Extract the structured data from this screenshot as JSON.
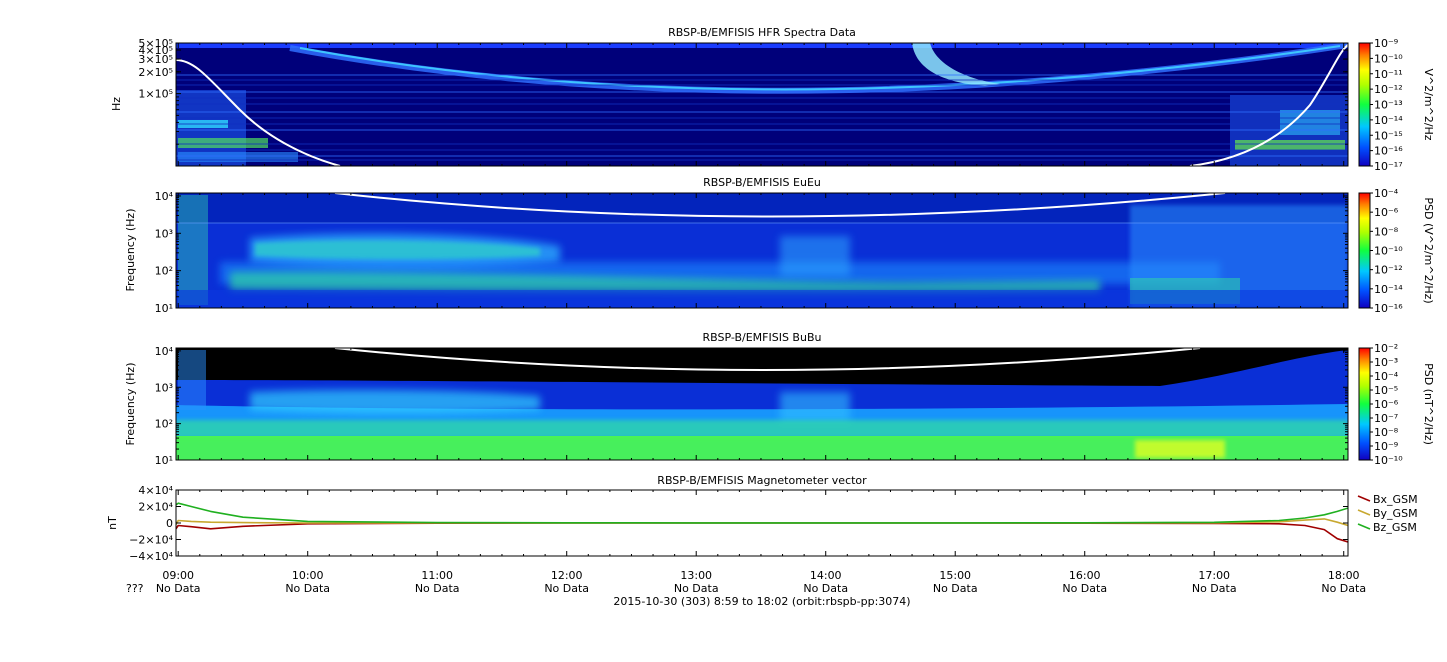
{
  "colors": {
    "hfr_bg": "#00007a",
    "eueu_bg": "#0a2fd6",
    "bubu_bg": "#000000",
    "hfr_band": "#2f6fff",
    "cyan": "#30d8ff",
    "green": "#50ff40",
    "yellow": "#ffff00",
    "white_line": "#ffffff",
    "bx": "#a00000",
    "by": "#c8a830",
    "bz": "#20b020"
  },
  "x_ticks": [
    "09:00",
    "10:00",
    "11:00",
    "12:00",
    "13:00",
    "14:00",
    "15:00",
    "16:00",
    "17:00",
    "18:00"
  ],
  "x_sub": {
    "prefix": "???",
    "labels": [
      "No Data",
      "No Data",
      "No Data",
      "No Data",
      "No Data",
      "No Data",
      "No Data",
      "No Data",
      "No Data",
      "No Data"
    ]
  },
  "footer": "2015-10-30 (303) 8:59 to 18:02 (orbit:rbspb-pp:3074)",
  "chart_data": [
    {
      "type": "heatmap",
      "title": "RBSP-B/EMFISIS  HFR Spectra Data",
      "ylabel": "Hz",
      "y_ticks": [
        "5×10⁵",
        "4×10⁵",
        "3×10⁵",
        "2×10⁵",
        "1×10⁵"
      ],
      "y_tick_values": [
        500000,
        400000,
        300000,
        200000,
        100000
      ],
      "yscale": "log",
      "ylim": [
        10000,
        500000
      ],
      "colorbar": {
        "label": "V^2/m^2/Hz",
        "ticks": [
          "10⁻⁹",
          "10⁻¹⁰",
          "10⁻¹¹",
          "10⁻¹²",
          "10⁻¹³",
          "10⁻¹⁴",
          "10⁻¹⁵",
          "10⁻¹⁶",
          "10⁻¹⁷"
        ],
        "range": [
          1e-17,
          1e-09
        ]
      }
    },
    {
      "type": "heatmap",
      "title": "RBSP-B/EMFISIS  EuEu",
      "ylabel": "Frequency (Hz)",
      "y_ticks": [
        "10⁴",
        "10³",
        "10²",
        "10¹"
      ],
      "y_tick_values": [
        10000,
        1000,
        100,
        10
      ],
      "yscale": "log",
      "ylim": [
        10,
        12000
      ],
      "colorbar": {
        "label": "PSD (V^2/m^2/Hz)",
        "ticks": [
          "10⁻⁴",
          "10⁻⁶",
          "10⁻⁸",
          "10⁻¹⁰",
          "10⁻¹²",
          "10⁻¹⁴",
          "10⁻¹⁶"
        ],
        "range": [
          1e-16,
          0.0001
        ]
      }
    },
    {
      "type": "heatmap",
      "title": "RBSP-B/EMFISIS  BuBu",
      "ylabel": "Frequency (Hz)",
      "y_ticks": [
        "10⁴",
        "10³",
        "10²",
        "10¹"
      ],
      "y_tick_values": [
        10000,
        1000,
        100,
        10
      ],
      "yscale": "log",
      "ylim": [
        10,
        12000
      ],
      "colorbar": {
        "label": "PSD (nT^2/Hz)",
        "ticks": [
          "10⁻²",
          "10⁻³",
          "10⁻⁴",
          "10⁻⁵",
          "10⁻⁶",
          "10⁻⁷",
          "10⁻⁸",
          "10⁻⁹",
          "10⁻¹⁰"
        ],
        "range": [
          1e-10,
          0.01
        ]
      }
    },
    {
      "type": "line",
      "title": "RBSP-B/EMFISIS  Magnetometer vector",
      "ylabel": "nT",
      "y_ticks": [
        "4×10⁴",
        "2×10⁴",
        "0",
        "−2×10⁴",
        "−4×10⁴"
      ],
      "y_tick_values": [
        40000,
        20000,
        0,
        -20000,
        -40000
      ],
      "ylim": [
        -40000,
        40000
      ],
      "x": [
        8.983,
        9.0,
        9.1,
        9.25,
        9.5,
        10.0,
        11.0,
        12.0,
        13.0,
        14.0,
        15.0,
        16.0,
        17.0,
        17.5,
        17.7,
        17.85,
        17.95,
        18.033
      ],
      "series": [
        {
          "name": "Bx_GSM",
          "color": "#a00000",
          "values": [
            -7000,
            -3000,
            -4500,
            -7000,
            -4000,
            -1000,
            -300,
            0,
            0,
            0,
            0,
            -200,
            -500,
            -1000,
            -3000,
            -8000,
            -19000,
            -23000
          ]
        },
        {
          "name": "By_GSM",
          "color": "#c8a830",
          "values": [
            -2000,
            3000,
            2000,
            1000,
            500,
            0,
            0,
            0,
            0,
            0,
            0,
            0,
            300,
            1500,
            3500,
            5000,
            1000,
            -3000
          ]
        },
        {
          "name": "Bz_GSM",
          "color": "#20b020",
          "values": [
            22000,
            24000,
            20000,
            14000,
            7000,
            2000,
            500,
            200,
            100,
            100,
            100,
            300,
            800,
            3000,
            6000,
            10000,
            14000,
            18000
          ]
        }
      ]
    }
  ]
}
